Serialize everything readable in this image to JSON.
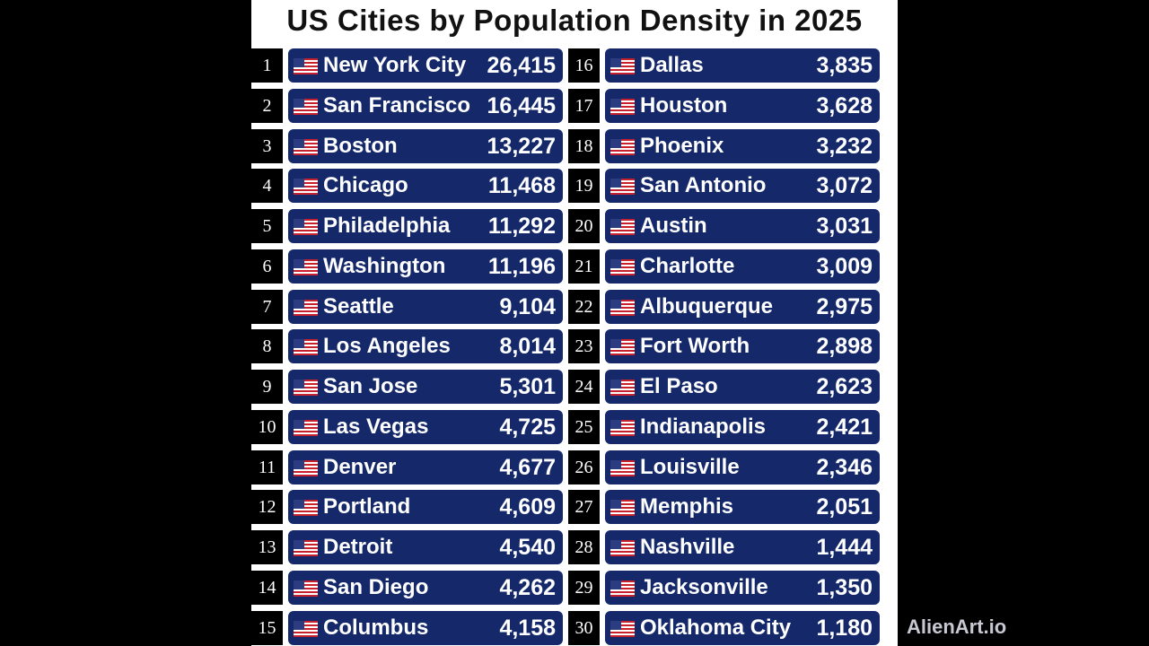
{
  "title": "US Cities by Population Density in 2025",
  "watermark": "AlienArt.io",
  "colors": {
    "bar": "#14286a",
    "rank_box": "#000000",
    "background": "#ffffff"
  },
  "flag_icon": "us-flag-icon",
  "rows": [
    {
      "rank": "1",
      "city": "New York City",
      "value": "26,415"
    },
    {
      "rank": "2",
      "city": "San Francisco",
      "value": "16,445"
    },
    {
      "rank": "3",
      "city": "Boston",
      "value": "13,227"
    },
    {
      "rank": "4",
      "city": "Chicago",
      "value": "11,468"
    },
    {
      "rank": "5",
      "city": "Philadelphia",
      "value": "11,292"
    },
    {
      "rank": "6",
      "city": "Washington",
      "value": "11,196"
    },
    {
      "rank": "7",
      "city": "Seattle",
      "value": "9,104"
    },
    {
      "rank": "8",
      "city": "Los Angeles",
      "value": "8,014"
    },
    {
      "rank": "9",
      "city": "San Jose",
      "value": "5,301"
    },
    {
      "rank": "10",
      "city": "Las Vegas",
      "value": "4,725"
    },
    {
      "rank": "11",
      "city": "Denver",
      "value": "4,677"
    },
    {
      "rank": "12",
      "city": "Portland",
      "value": "4,609"
    },
    {
      "rank": "13",
      "city": "Detroit",
      "value": "4,540"
    },
    {
      "rank": "14",
      "city": "San Diego",
      "value": "4,262"
    },
    {
      "rank": "15",
      "city": "Columbus",
      "value": "4,158"
    },
    {
      "rank": "16",
      "city": "Dallas",
      "value": "3,835"
    },
    {
      "rank": "17",
      "city": "Houston",
      "value": "3,628"
    },
    {
      "rank": "18",
      "city": "Phoenix",
      "value": "3,232"
    },
    {
      "rank": "19",
      "city": "San Antonio",
      "value": "3,072"
    },
    {
      "rank": "20",
      "city": "Austin",
      "value": "3,031"
    },
    {
      "rank": "21",
      "city": "Charlotte",
      "value": "3,009"
    },
    {
      "rank": "22",
      "city": "Albuquerque",
      "value": "2,975"
    },
    {
      "rank": "23",
      "city": "Fort Worth",
      "value": "2,898"
    },
    {
      "rank": "24",
      "city": "El Paso",
      "value": "2,623"
    },
    {
      "rank": "25",
      "city": "Indianapolis",
      "value": "2,421"
    },
    {
      "rank": "26",
      "city": "Louisville",
      "value": "2,346"
    },
    {
      "rank": "27",
      "city": "Memphis",
      "value": "2,051"
    },
    {
      "rank": "28",
      "city": "Nashville",
      "value": "1,444"
    },
    {
      "rank": "29",
      "city": "Jacksonville",
      "value": "1,350"
    },
    {
      "rank": "30",
      "city": "Oklahoma City",
      "value": "1,180"
    }
  ]
}
